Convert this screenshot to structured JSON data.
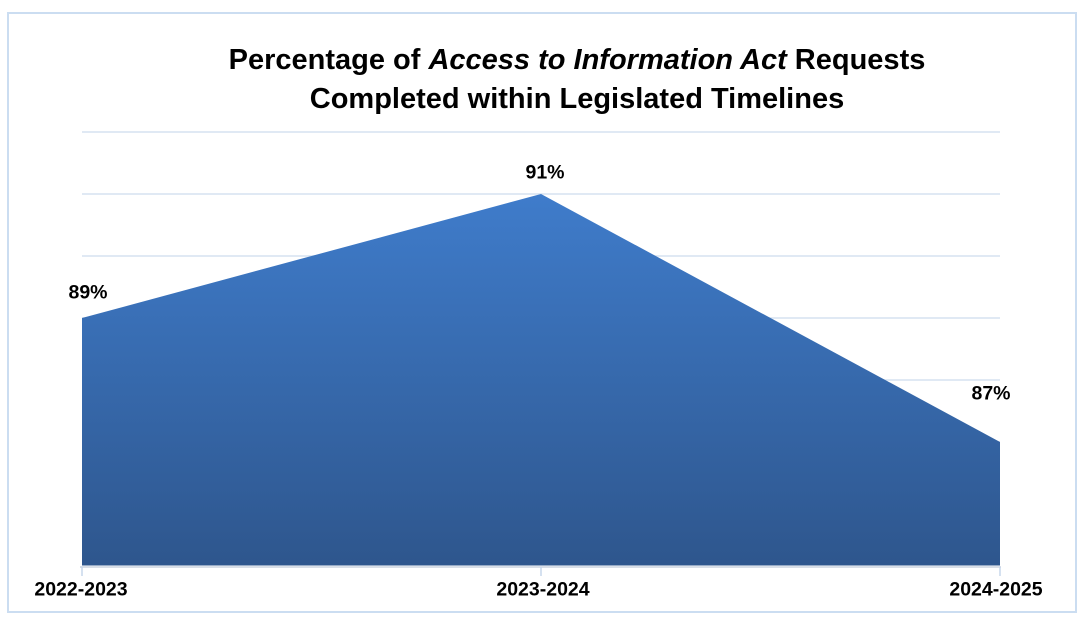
{
  "chart_data": {
    "type": "area",
    "title": "Percentage of Access to Information Act Requests Completed within Legislated Timelines",
    "title_line1_normal": "Percentage of ",
    "title_line1_italic": "Access to Information Act",
    "title_line1_after": " Requests",
    "title_line2": "Completed within Legislated Timelines",
    "categories": [
      "2022-2023",
      "2023-2024",
      "2024-2025"
    ],
    "values": [
      89,
      91,
      87
    ],
    "data_labels": [
      "89%",
      "91%",
      "87%"
    ],
    "xlabel": "",
    "ylabel": "",
    "ylim": [
      85,
      92
    ],
    "gridline_step": 1,
    "grid": "horizontal",
    "legend": "none",
    "data_label_position": "above",
    "colors": {
      "area_gradient_top": "#3F7CCB",
      "area_gradient_bottom": "#2E568D",
      "gridline": "#D5E2F0",
      "axis_line": "#D8DEE7",
      "tick": "#C7D7EA",
      "frame_border": "#CBDDF1",
      "text": "#000000"
    }
  }
}
